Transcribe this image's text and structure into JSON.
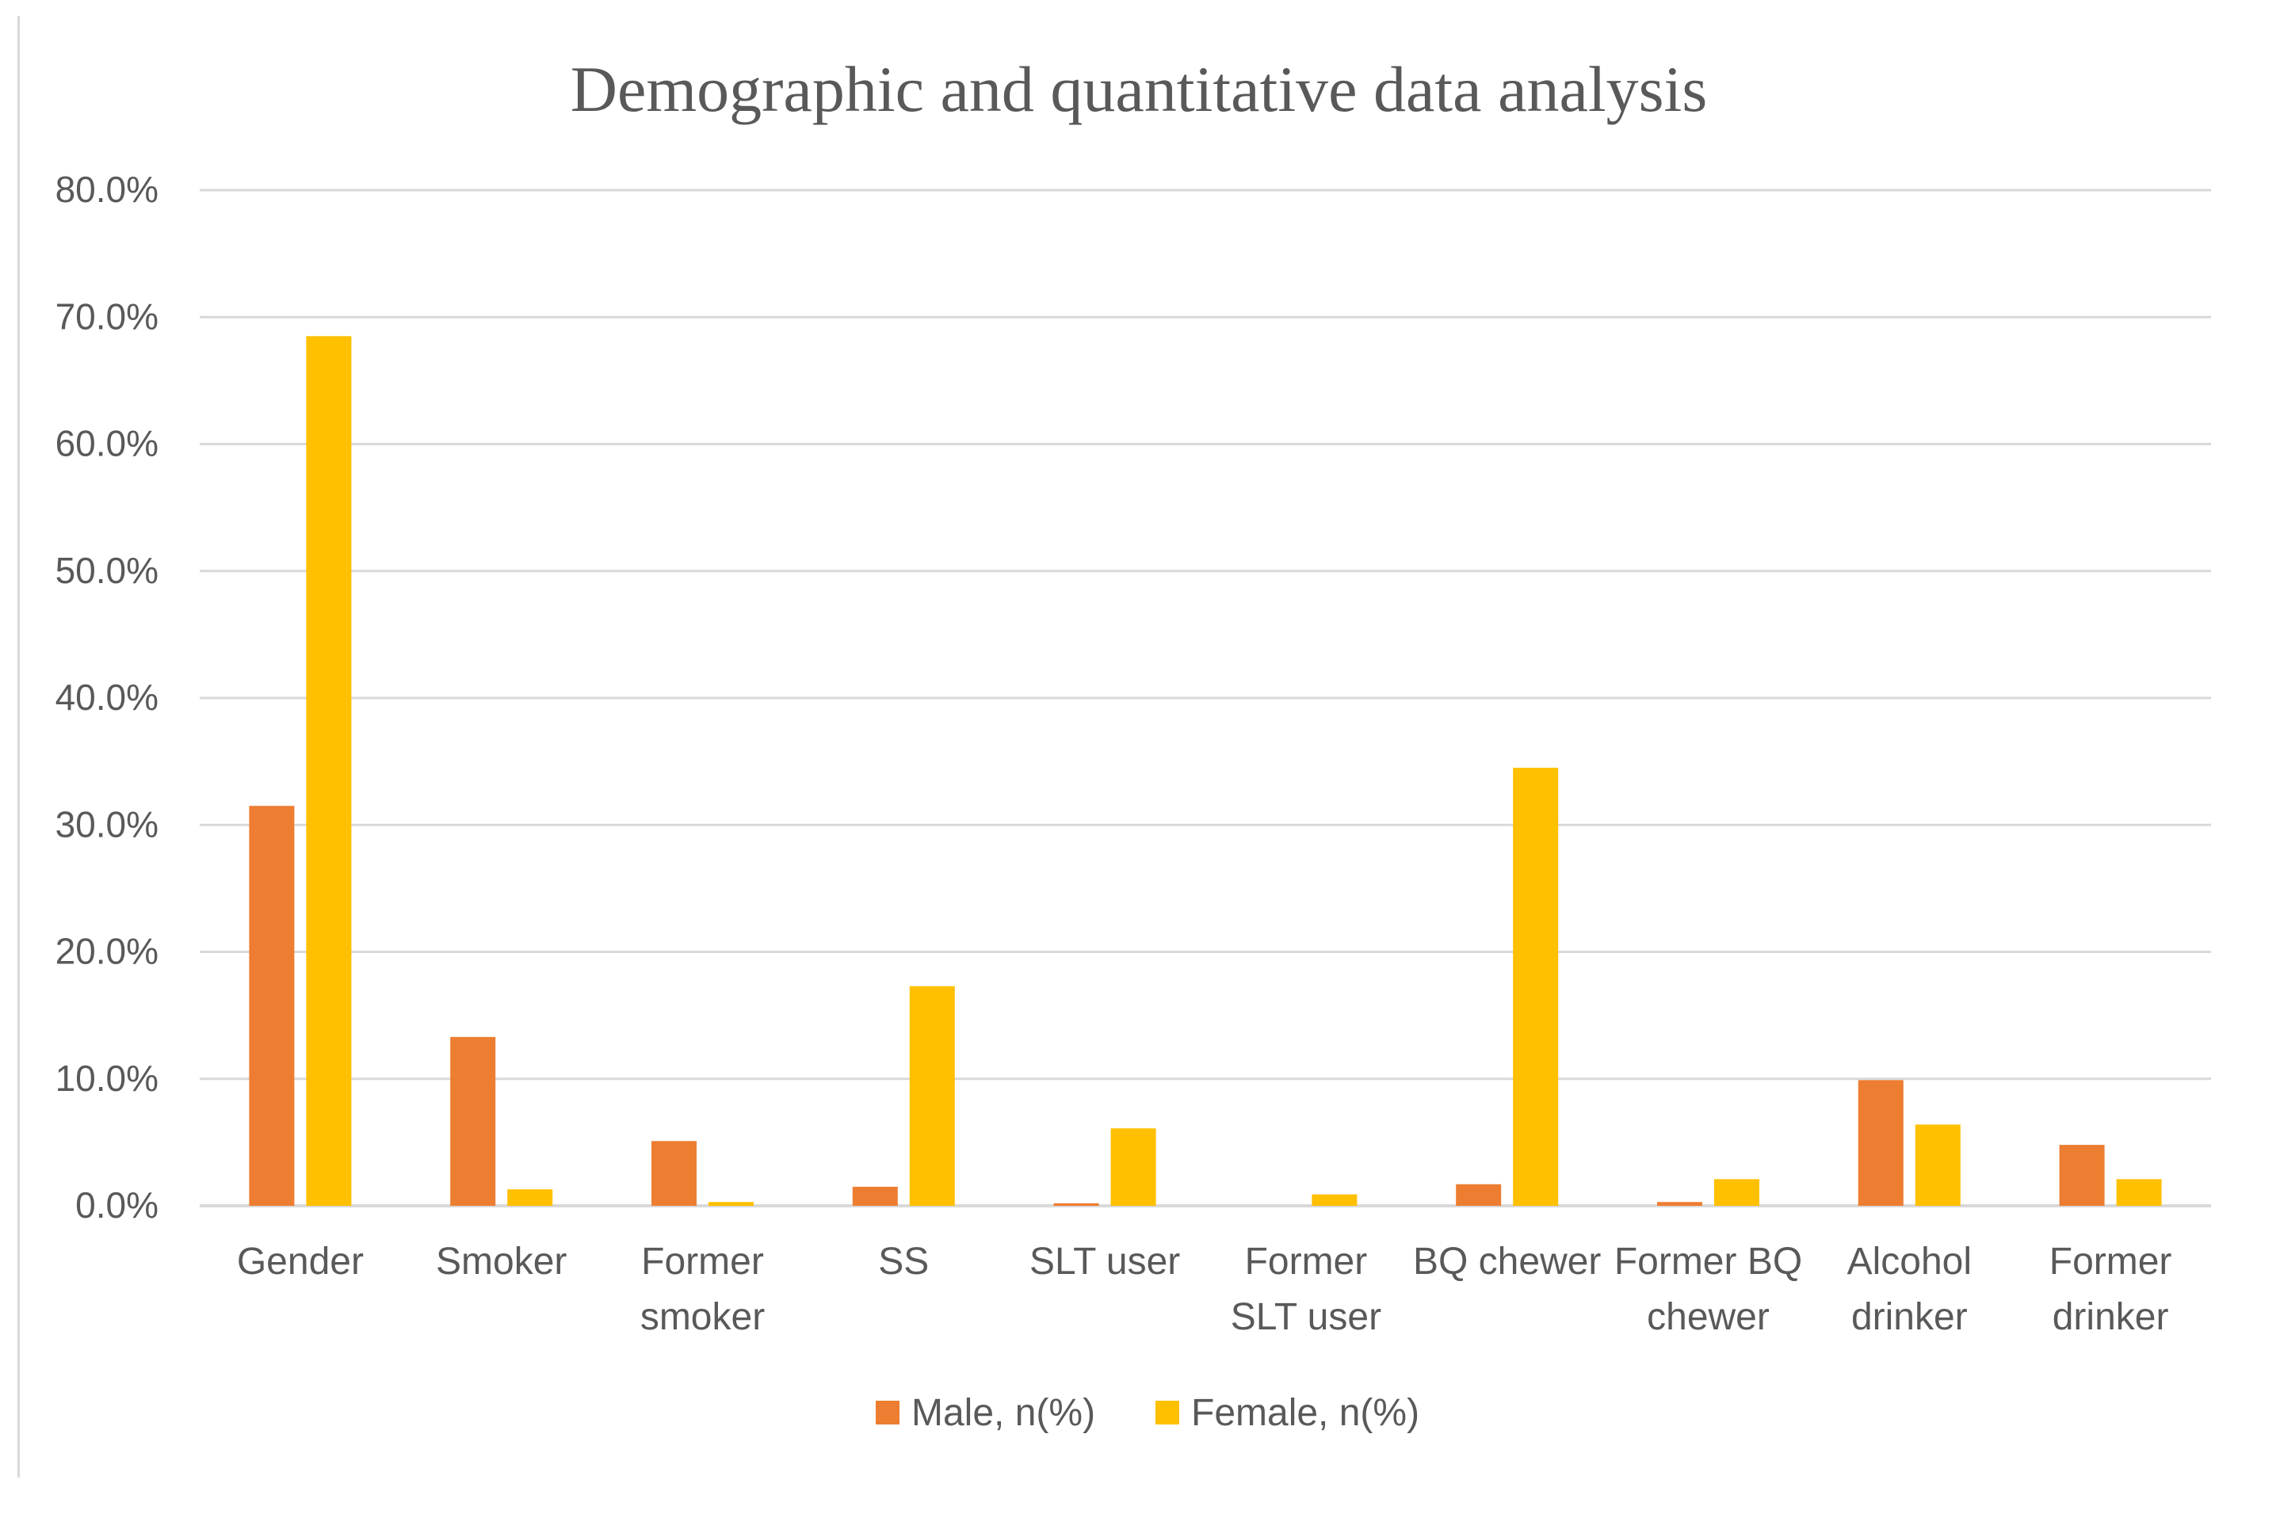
{
  "chart_data": {
    "type": "bar",
    "title": "Demographic and quantitative data analysis",
    "xlabel": "",
    "ylabel": "",
    "ylim": [
      0,
      80
    ],
    "yticks": [
      "0.0%",
      "10.0%",
      "20.0%",
      "30.0%",
      "40.0%",
      "50.0%",
      "60.0%",
      "70.0%",
      "80.0%"
    ],
    "grid": true,
    "legend_position": "bottom-center",
    "categories": [
      [
        "Gender"
      ],
      [
        "Smoker"
      ],
      [
        "Former",
        "smoker"
      ],
      [
        "SS"
      ],
      [
        "SLT user"
      ],
      [
        "Former",
        "SLT user"
      ],
      [
        "BQ chewer"
      ],
      [
        "Former BQ",
        "chewer"
      ],
      [
        "Alcohol",
        "drinker"
      ],
      [
        "Former",
        "drinker"
      ]
    ],
    "series": [
      {
        "name": "Male, n(%)",
        "color": "#ED7D31",
        "values": [
          31.5,
          13.3,
          5.1,
          1.5,
          0.2,
          0.0,
          1.7,
          0.3,
          9.9,
          4.8
        ]
      },
      {
        "name": "Female, n(%)",
        "color": "#FFC000",
        "values": [
          68.5,
          1.3,
          0.3,
          17.3,
          6.1,
          0.9,
          34.5,
          2.1,
          6.4,
          2.1
        ]
      }
    ]
  },
  "colors": {
    "gridline": "#D9D9D9",
    "axis_line": "#D9D9D9",
    "text": "#595959"
  }
}
